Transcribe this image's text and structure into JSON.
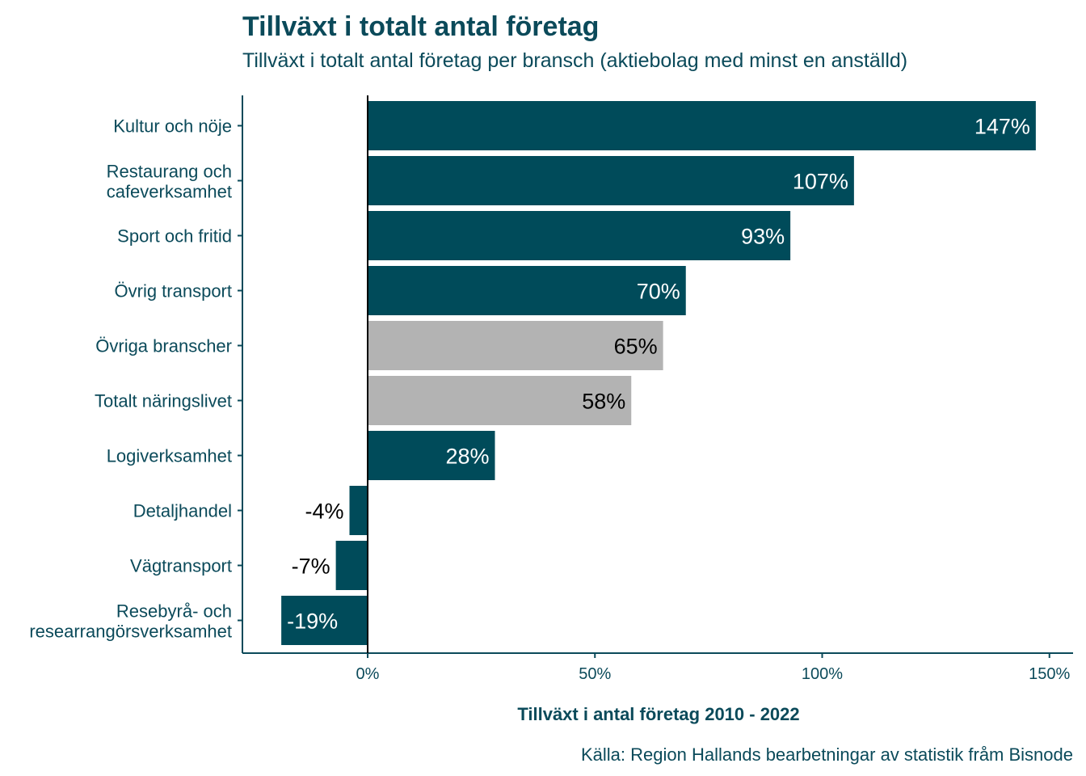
{
  "chart_data": {
    "type": "bar",
    "orientation": "horizontal",
    "title": "Tillväxt i totalt antal företag",
    "subtitle": "Tillväxt i totalt antal företag per bransch (aktiebolag med minst en anställd)",
    "xlabel": "Tillväxt i antal företag 2010 - 2022",
    "ylabel": "",
    "caption": "Källa: Region Hallands bearbetningar av statistik fråm Bisnode",
    "xlim": [
      -27,
      155
    ],
    "xticks": [
      0,
      50,
      100,
      150
    ],
    "xtick_labels": [
      "0%",
      "50%",
      "100%",
      "150%"
    ],
    "grid": false,
    "categories": [
      [
        "Kultur och nöje"
      ],
      [
        "Restaurang och",
        "cafeverksamhet"
      ],
      [
        "Sport och fritid"
      ],
      [
        "Övrig transport"
      ],
      [
        "Övriga branscher"
      ],
      [
        "Totalt näringslivet"
      ],
      [
        "Logiverksamhet"
      ],
      [
        "Detaljhandel"
      ],
      [
        "Vägtransport"
      ],
      [
        "Resebyrå- och",
        "researrangörsverksamhet"
      ]
    ],
    "values": [
      147,
      107,
      93,
      70,
      65,
      58,
      28,
      -4,
      -7,
      -19
    ],
    "value_labels": [
      "147%",
      "107%",
      "93%",
      "70%",
      "65%",
      "58%",
      "28%",
      "-4%",
      "-7%",
      "-19%"
    ],
    "highlight": [
      false,
      false,
      false,
      false,
      true,
      true,
      false,
      false,
      false,
      false
    ],
    "colors": {
      "primary": "#004b5a",
      "highlight": "#b3b3b3",
      "text": "#0b4a5a",
      "label_on_dark": "#ffffff",
      "label_on_light": "#000000"
    }
  }
}
